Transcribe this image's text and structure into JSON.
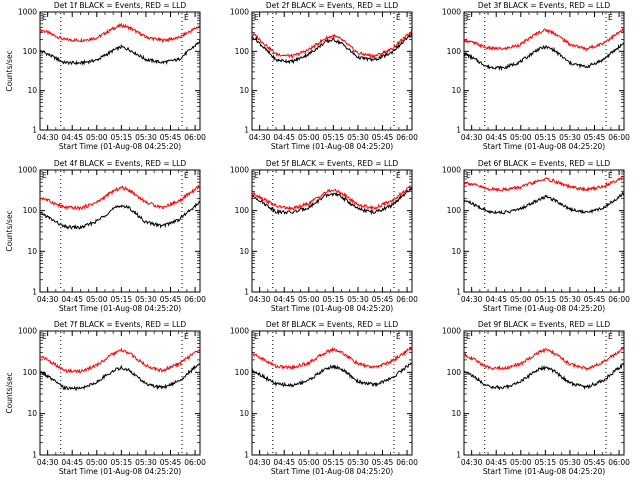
{
  "chart_data": [
    {
      "type": "line",
      "title": "Det 1f BLACK = Events, RED = LLD",
      "xlabel": "Start Time (01-Aug-08 04:25:20)",
      "ylabel": "Counts/sec",
      "ylim": [
        1,
        1000
      ],
      "yscale": "log",
      "xticks": [
        "04:30",
        "04:45",
        "05:00",
        "05:15",
        "05:30",
        "05:45",
        "06:00"
      ],
      "yticks": [
        "1",
        "10",
        "100",
        "1000"
      ],
      "markers": [
        "E",
        "E"
      ],
      "dotted_lines": [
        "04:38",
        "05:52"
      ],
      "series": [
        {
          "color": "#ff0000",
          "x": [
            "04:30",
            "04:40",
            "04:50",
            "05:00",
            "05:10",
            "05:15",
            "05:20",
            "05:30",
            "05:40",
            "05:50",
            "06:00"
          ],
          "values": [
            300,
            200,
            190,
            220,
            380,
            460,
            400,
            230,
            190,
            220,
            380
          ]
        },
        {
          "color": "#000000",
          "x": [
            "04:30",
            "04:40",
            "04:50",
            "05:00",
            "05:10",
            "05:15",
            "05:20",
            "05:30",
            "05:40",
            "05:50",
            "06:00"
          ],
          "values": [
            85,
            52,
            50,
            60,
            105,
            130,
            110,
            62,
            52,
            62,
            140
          ]
        }
      ]
    },
    {
      "type": "line",
      "title": "Det 2f BLACK = Events, RED = LLD",
      "xlabel": "Start Time (01-Aug-08 04:25:20)",
      "ylabel": "",
      "ylim": [
        1,
        1000
      ],
      "yscale": "log",
      "xticks": [
        "04:30",
        "04:45",
        "05:00",
        "05:15",
        "05:30",
        "05:45",
        "06:00"
      ],
      "yticks": [
        "1",
        "10",
        "100",
        "1000"
      ],
      "markers": [
        "E",
        "E"
      ],
      "dotted_lines": [
        "04:38",
        "05:52"
      ],
      "series": [
        {
          "color": "#ff0000",
          "x": [
            "04:30",
            "04:40",
            "04:50",
            "05:00",
            "05:10",
            "05:15",
            "05:20",
            "05:30",
            "05:40",
            "05:50",
            "06:00"
          ],
          "values": [
            200,
            85,
            75,
            110,
            210,
            250,
            200,
            90,
            75,
            110,
            250
          ]
        },
        {
          "color": "#000000",
          "x": [
            "04:30",
            "04:40",
            "04:50",
            "05:00",
            "05:10",
            "05:15",
            "05:20",
            "05:30",
            "05:40",
            "05:50",
            "06:00"
          ],
          "values": [
            160,
            60,
            55,
            85,
            170,
            200,
            160,
            70,
            60,
            90,
            210
          ]
        }
      ]
    },
    {
      "type": "line",
      "title": "Det 3f BLACK = Events, RED = LLD",
      "xlabel": "Start Time (01-Aug-08 04:25:20)",
      "ylabel": "",
      "ylim": [
        1,
        1000
      ],
      "yscale": "log",
      "xticks": [
        "04:30",
        "04:45",
        "05:00",
        "05:15",
        "05:30",
        "05:45",
        "06:00"
      ],
      "yticks": [
        "1",
        "10",
        "100",
        "1000"
      ],
      "markers": [
        "E",
        "E"
      ],
      "dotted_lines": [
        "04:38",
        "05:52"
      ],
      "series": [
        {
          "color": "#ff0000",
          "x": [
            "04:30",
            "04:40",
            "04:50",
            "05:00",
            "05:10",
            "05:15",
            "05:20",
            "05:30",
            "05:40",
            "05:50",
            "06:00"
          ],
          "values": [
            170,
            120,
            115,
            150,
            290,
            350,
            300,
            150,
            115,
            160,
            300
          ]
        },
        {
          "color": "#000000",
          "x": [
            "04:30",
            "04:40",
            "04:50",
            "05:00",
            "05:10",
            "05:15",
            "05:20",
            "05:30",
            "05:40",
            "05:50",
            "06:00"
          ],
          "values": [
            70,
            40,
            38,
            55,
            110,
            130,
            110,
            50,
            40,
            60,
            130
          ]
        }
      ]
    },
    {
      "type": "line",
      "title": "Det 4f BLACK = Events, RED = LLD",
      "xlabel": "Start Time (01-Aug-08 04:25:20)",
      "ylabel": "Counts/sec",
      "ylim": [
        1,
        1000
      ],
      "yscale": "log",
      "xticks": [
        "04:30",
        "04:45",
        "05:00",
        "05:15",
        "05:30",
        "05:45",
        "06:00"
      ],
      "yticks": [
        "1",
        "10",
        "100",
        "1000"
      ],
      "markers": [
        "E",
        "E"
      ],
      "dotted_lines": [
        "04:38",
        "05:52"
      ],
      "series": [
        {
          "color": "#ff0000",
          "x": [
            "04:30",
            "04:40",
            "04:50",
            "05:00",
            "05:10",
            "05:15",
            "05:20",
            "05:30",
            "05:40",
            "05:50",
            "06:00"
          ],
          "values": [
            180,
            120,
            115,
            160,
            300,
            370,
            320,
            160,
            120,
            170,
            330
          ]
        },
        {
          "color": "#000000",
          "x": [
            "04:30",
            "04:40",
            "04:50",
            "05:00",
            "05:10",
            "05:15",
            "05:20",
            "05:30",
            "05:40",
            "05:50",
            "06:00"
          ],
          "values": [
            70,
            40,
            38,
            55,
            110,
            135,
            115,
            52,
            42,
            60,
            130
          ]
        }
      ]
    },
    {
      "type": "line",
      "title": "Det 5f BLACK = Events, RED = LLD",
      "xlabel": "Start Time (01-Aug-08 04:25:20)",
      "ylabel": "",
      "ylim": [
        1,
        1000
      ],
      "yscale": "log",
      "xticks": [
        "04:30",
        "04:45",
        "05:00",
        "05:15",
        "05:30",
        "05:45",
        "06:00"
      ],
      "yticks": [
        "1",
        "10",
        "100",
        "1000"
      ],
      "markers": [
        "E",
        "E"
      ],
      "dotted_lines": [
        "04:38",
        "05:52"
      ],
      "series": [
        {
          "color": "#ff0000",
          "x": [
            "04:30",
            "04:40",
            "04:50",
            "05:00",
            "05:10",
            "05:15",
            "05:20",
            "05:30",
            "05:40",
            "05:50",
            "06:00"
          ],
          "values": [
            220,
            130,
            110,
            150,
            280,
            320,
            270,
            140,
            115,
            170,
            330
          ]
        },
        {
          "color": "#000000",
          "x": [
            "04:30",
            "04:40",
            "04:50",
            "05:00",
            "05:10",
            "05:15",
            "05:20",
            "05:30",
            "05:40",
            "05:50",
            "06:00"
          ],
          "values": [
            180,
            95,
            90,
            120,
            230,
            260,
            220,
            110,
            90,
            130,
            280
          ]
        }
      ]
    },
    {
      "type": "line",
      "title": "Det 6f BLACK = Events, RED = LLD",
      "xlabel": "Start Time (01-Aug-08 04:25:20)",
      "ylabel": "",
      "ylim": [
        1,
        1000
      ],
      "yscale": "log",
      "xticks": [
        "04:30",
        "04:45",
        "05:00",
        "05:15",
        "05:30",
        "05:45",
        "06:00"
      ],
      "yticks": [
        "1",
        "10",
        "100",
        "1000"
      ],
      "markers": [
        "E",
        "E"
      ],
      "dotted_lines": [
        "04:38",
        "05:52"
      ],
      "series": [
        {
          "color": "#ff0000",
          "x": [
            "04:30",
            "04:40",
            "04:50",
            "05:00",
            "05:10",
            "05:15",
            "05:20",
            "05:30",
            "05:40",
            "05:50",
            "06:00"
          ],
          "values": [
            450,
            340,
            330,
            380,
            520,
            600,
            540,
            380,
            330,
            390,
            600
          ]
        },
        {
          "color": "#000000",
          "x": [
            "04:30",
            "04:40",
            "04:50",
            "05:00",
            "05:10",
            "05:15",
            "05:20",
            "05:30",
            "05:40",
            "05:50",
            "06:00"
          ],
          "values": [
            150,
            95,
            90,
            110,
            180,
            220,
            190,
            110,
            90,
            115,
            220
          ]
        }
      ]
    },
    {
      "type": "line",
      "title": "Det 7f BLACK = Events, RED = LLD",
      "xlabel": "Start Time (01-Aug-08 04:25:20)",
      "ylabel": "Counts/sec",
      "ylim": [
        1,
        1000
      ],
      "yscale": "log",
      "xticks": [
        "04:30",
        "04:45",
        "05:00",
        "05:15",
        "05:30",
        "05:45",
        "06:00"
      ],
      "yticks": [
        "1",
        "10",
        "100",
        "1000"
      ],
      "markers": [
        "E",
        "E"
      ],
      "dotted_lines": [
        "04:38",
        "05:52"
      ],
      "series": [
        {
          "color": "#ff0000",
          "x": [
            "04:30",
            "04:40",
            "04:50",
            "05:00",
            "05:10",
            "05:15",
            "05:20",
            "05:30",
            "05:40",
            "05:50",
            "06:00"
          ],
          "values": [
            200,
            110,
            105,
            150,
            280,
            340,
            290,
            145,
            110,
            160,
            300
          ]
        },
        {
          "color": "#000000",
          "x": [
            "04:30",
            "04:40",
            "04:50",
            "05:00",
            "05:10",
            "05:15",
            "05:20",
            "05:30",
            "05:40",
            "05:50",
            "06:00"
          ],
          "values": [
            80,
            42,
            40,
            58,
            110,
            130,
            110,
            52,
            42,
            62,
            130
          ]
        }
      ]
    },
    {
      "type": "line",
      "title": "Det 8f BLACK = Events, RED = LLD",
      "xlabel": "Start Time (01-Aug-08 04:25:20)",
      "ylabel": "",
      "ylim": [
        1,
        1000
      ],
      "yscale": "log",
      "xticks": [
        "04:30",
        "04:45",
        "05:00",
        "05:15",
        "05:30",
        "05:45",
        "06:00"
      ],
      "yticks": [
        "1",
        "10",
        "100",
        "1000"
      ],
      "markers": [
        "E",
        "E"
      ],
      "dotted_lines": [
        "04:38",
        "05:52"
      ],
      "series": [
        {
          "color": "#ff0000",
          "x": [
            "04:30",
            "04:40",
            "04:50",
            "05:00",
            "05:10",
            "05:15",
            "05:20",
            "05:30",
            "05:40",
            "05:50",
            "06:00"
          ],
          "values": [
            230,
            140,
            130,
            170,
            300,
            360,
            310,
            160,
            130,
            180,
            330
          ]
        },
        {
          "color": "#000000",
          "x": [
            "04:30",
            "04:40",
            "04:50",
            "05:00",
            "05:10",
            "05:15",
            "05:20",
            "05:30",
            "05:40",
            "05:50",
            "06:00"
          ],
          "values": [
            90,
            52,
            48,
            65,
            120,
            140,
            120,
            60,
            50,
            70,
            140
          ]
        }
      ]
    },
    {
      "type": "line",
      "title": "Det 9f BLACK = Events, RED = LLD",
      "xlabel": "Start Time (01-Aug-08 04:25:20)",
      "ylabel": "",
      "ylim": [
        1,
        1000
      ],
      "yscale": "log",
      "xticks": [
        "04:30",
        "04:45",
        "05:00",
        "05:15",
        "05:30",
        "05:45",
        "06:00"
      ],
      "yticks": [
        "1",
        "10",
        "100",
        "1000"
      ],
      "markers": [
        "E",
        "E"
      ],
      "dotted_lines": [
        "04:38",
        "05:52"
      ],
      "series": [
        {
          "color": "#ff0000",
          "x": [
            "04:30",
            "04:40",
            "04:50",
            "05:00",
            "05:10",
            "05:15",
            "05:20",
            "05:30",
            "05:40",
            "05:50",
            "06:00"
          ],
          "values": [
            220,
            130,
            125,
            160,
            290,
            350,
            300,
            155,
            125,
            170,
            320
          ]
        },
        {
          "color": "#000000",
          "x": [
            "04:30",
            "04:40",
            "04:50",
            "05:00",
            "05:10",
            "05:15",
            "05:20",
            "05:30",
            "05:40",
            "05:50",
            "06:00"
          ],
          "values": [
            85,
            45,
            42,
            60,
            115,
            130,
            110,
            55,
            44,
            62,
            130
          ]
        }
      ]
    }
  ]
}
